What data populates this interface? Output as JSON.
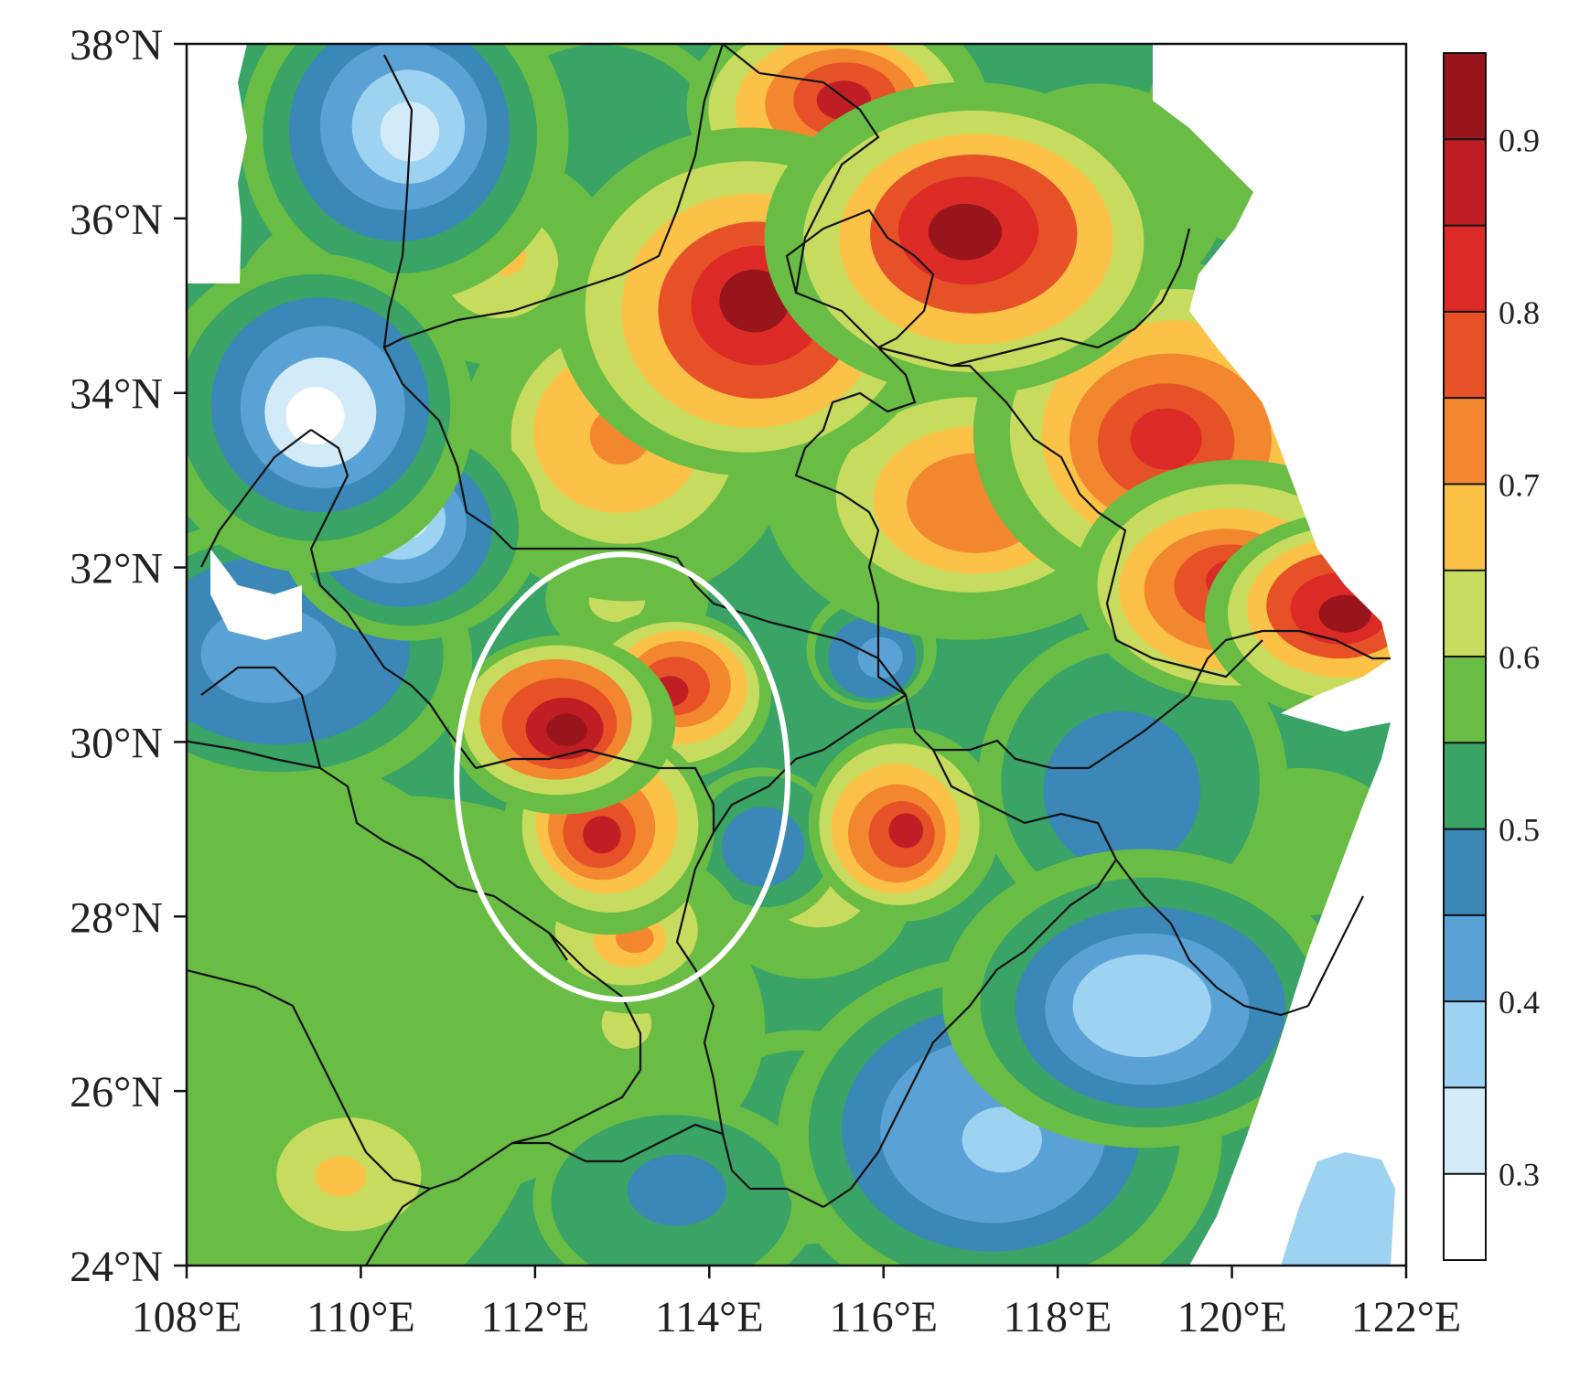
{
  "map": {
    "lon_range": [
      108,
      122
    ],
    "lat_range": [
      24,
      38
    ],
    "lon_ticks": [
      {
        "value": 108,
        "label": "108°E"
      },
      {
        "value": 110,
        "label": "110°E"
      },
      {
        "value": 112,
        "label": "112°E"
      },
      {
        "value": 114,
        "label": "114°E"
      },
      {
        "value": 116,
        "label": "116°E"
      },
      {
        "value": 118,
        "label": "118°E"
      },
      {
        "value": 120,
        "label": "120°E"
      },
      {
        "value": 122,
        "label": "122°E"
      }
    ],
    "lat_ticks": [
      {
        "value": 38,
        "label": "38°N"
      },
      {
        "value": 36,
        "label": "36°N"
      },
      {
        "value": 34,
        "label": "34°N"
      },
      {
        "value": 32,
        "label": "32°N"
      },
      {
        "value": 30,
        "label": "30°N"
      },
      {
        "value": 28,
        "label": "28°N"
      },
      {
        "value": 26,
        "label": "26°N"
      },
      {
        "value": 24,
        "label": "24°N"
      }
    ],
    "highlight_ellipse": {
      "center_lon": 113.0,
      "center_lat": 29.6,
      "half_width_deg": 1.9,
      "half_height_deg": 2.55,
      "color": "#ffffff"
    }
  },
  "colorbar": {
    "levels": [
      {
        "color": "#ffffff"
      },
      {
        "color": "#d3ebf9"
      },
      {
        "color": "#9dd2f1"
      },
      {
        "color": "#5aa2d6"
      },
      {
        "color": "#3b87b8"
      },
      {
        "color": "#3aa366"
      },
      {
        "color": "#69bd45"
      },
      {
        "color": "#c7dc5e"
      },
      {
        "color": "#fcc247"
      },
      {
        "color": "#f2872f"
      },
      {
        "color": "#e75127"
      },
      {
        "color": "#dc2b26"
      },
      {
        "color": "#bf1e24"
      },
      {
        "color": "#98151b"
      }
    ],
    "labels": [
      {
        "value": 0.3,
        "text": "0.3"
      },
      {
        "value": 0.4,
        "text": "0.4"
      },
      {
        "value": 0.5,
        "text": "0.5"
      },
      {
        "value": 0.6,
        "text": "0.6"
      },
      {
        "value": 0.7,
        "text": "0.7"
      },
      {
        "value": 0.8,
        "text": "0.8"
      },
      {
        "value": 0.9,
        "text": "0.9"
      }
    ],
    "range": [
      0.25,
      0.95
    ]
  },
  "field_blobs": [
    {
      "lon": 108.5,
      "lat": 26.5,
      "r": 3.5,
      "v": 0.55
    },
    {
      "lon": 110.5,
      "lat": 27.0,
      "r": 3.0,
      "v": 0.57
    },
    {
      "lon": 109.0,
      "lat": 31.0,
      "r": 2.0,
      "v": 0.42
    },
    {
      "lon": 110.5,
      "lat": 32.5,
      "r": 1.6,
      "v": 0.32
    },
    {
      "lon": 109.5,
      "lat": 33.8,
      "r": 1.8,
      "v": 0.3
    },
    {
      "lon": 110.5,
      "lat": 37.0,
      "r": 2.0,
      "v": 0.32
    },
    {
      "lon": 109.8,
      "lat": 34.8,
      "r": 1.3,
      "v": 0.72
    },
    {
      "lon": 111.6,
      "lat": 35.5,
      "r": 1.2,
      "v": 0.66
    },
    {
      "lon": 112.8,
      "lat": 36.5,
      "r": 1.7,
      "v": 0.5
    },
    {
      "lon": 113.0,
      "lat": 33.5,
      "r": 1.8,
      "v": 0.72
    },
    {
      "lon": 114.5,
      "lat": 35.0,
      "r": 2.0,
      "v": 0.9
    },
    {
      "lon": 117.0,
      "lat": 35.8,
      "r": 2.0,
      "v": 0.9
    },
    {
      "lon": 115.5,
      "lat": 37.3,
      "r": 1.6,
      "v": 0.86
    },
    {
      "lon": 118.5,
      "lat": 36.2,
      "r": 1.3,
      "v": 0.62
    },
    {
      "lon": 120.5,
      "lat": 37.0,
      "r": 1.4,
      "v": 0.55
    },
    {
      "lon": 119.3,
      "lat": 33.5,
      "r": 2.0,
      "v": 0.84
    },
    {
      "lon": 117.0,
      "lat": 32.8,
      "r": 2.0,
      "v": 0.74
    },
    {
      "lon": 121.3,
      "lat": 31.5,
      "r": 1.5,
      "v": 0.91
    },
    {
      "lon": 120.0,
      "lat": 31.8,
      "r": 1.6,
      "v": 0.84
    },
    {
      "lon": 112.3,
      "lat": 30.2,
      "r": 1.3,
      "v": 0.94
    },
    {
      "lon": 113.6,
      "lat": 30.6,
      "r": 1.2,
      "v": 0.86
    },
    {
      "lon": 112.8,
      "lat": 29.0,
      "r": 1.3,
      "v": 0.86
    },
    {
      "lon": 113.1,
      "lat": 27.8,
      "r": 1.2,
      "v": 0.7
    },
    {
      "lon": 113.0,
      "lat": 31.6,
      "r": 0.8,
      "v": 0.62
    },
    {
      "lon": 115.9,
      "lat": 31.0,
      "r": 0.8,
      "v": 0.4
    },
    {
      "lon": 116.2,
      "lat": 29.0,
      "r": 1.1,
      "v": 0.86
    },
    {
      "lon": 115.2,
      "lat": 28.3,
      "r": 1.2,
      "v": 0.64
    },
    {
      "lon": 113.0,
      "lat": 26.8,
      "r": 1.7,
      "v": 0.6
    },
    {
      "lon": 114.6,
      "lat": 28.8,
      "r": 1.0,
      "v": 0.45
    },
    {
      "lon": 118.8,
      "lat": 29.5,
      "r": 1.8,
      "v": 0.45
    },
    {
      "lon": 119.0,
      "lat": 27.0,
      "r": 2.2,
      "v": 0.36
    },
    {
      "lon": 117.3,
      "lat": 25.5,
      "r": 2.2,
      "v": 0.38
    },
    {
      "lon": 115.0,
      "lat": 25.5,
      "r": 1.5,
      "v": 0.52
    },
    {
      "lon": 120.8,
      "lat": 28.8,
      "r": 1.0,
      "v": 0.55
    },
    {
      "lon": 109.8,
      "lat": 25.0,
      "r": 1.4,
      "v": 0.66
    },
    {
      "lon": 113.6,
      "lat": 24.8,
      "r": 1.5,
      "v": 0.48
    }
  ]
}
